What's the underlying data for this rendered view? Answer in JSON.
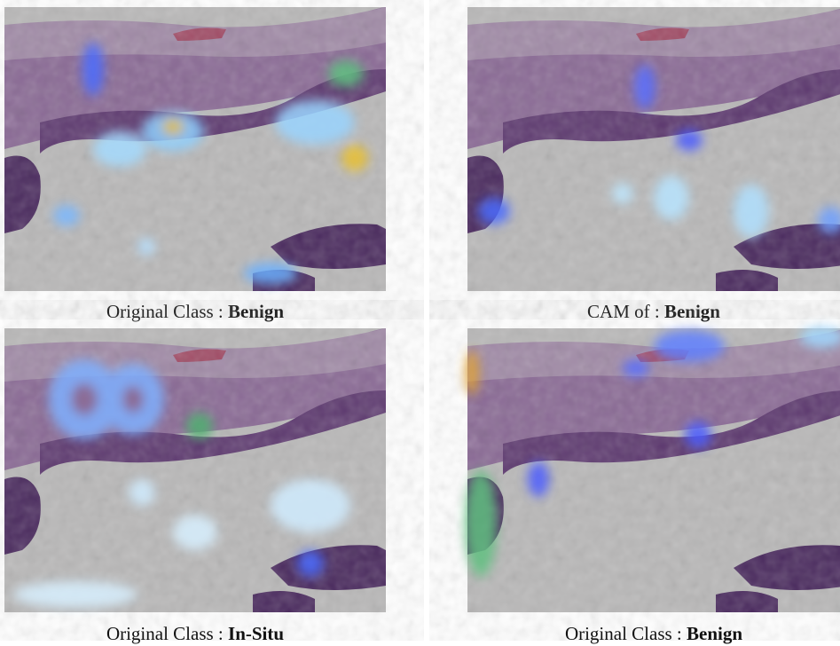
{
  "panels": [
    {
      "caption": {
        "prefix": "Original Class :",
        "label": "Benign"
      }
    },
    {
      "caption": {
        "prefix": "CAM of :",
        "label": "Benign"
      }
    },
    {
      "caption": {
        "prefix": "Original Class :",
        "label": "In-Situ"
      }
    },
    {
      "caption": {
        "prefix": "Original Class :",
        "label": "Benign"
      }
    }
  ]
}
